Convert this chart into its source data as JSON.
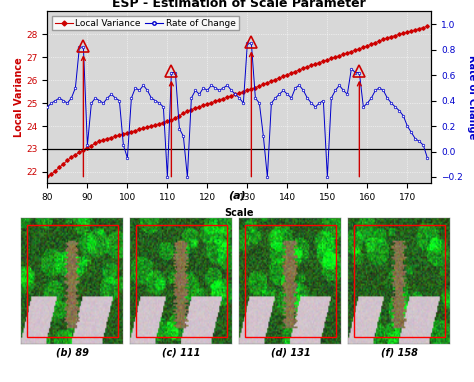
{
  "title": "ESP - Estimation of Scale Parameter",
  "xlabel": "Scale",
  "ylabel_left": "Local Variance",
  "ylabel_right": "Rate of Change",
  "xlim": [
    80,
    176
  ],
  "ylim_left": [
    21.5,
    29
  ],
  "ylim_right": [
    -0.25,
    1.1
  ],
  "hline_y": 23.0,
  "scale_x": [
    80,
    81,
    82,
    83,
    84,
    85,
    86,
    87,
    88,
    89,
    90,
    91,
    92,
    93,
    94,
    95,
    96,
    97,
    98,
    99,
    100,
    101,
    102,
    103,
    104,
    105,
    106,
    107,
    108,
    109,
    110,
    111,
    112,
    113,
    114,
    115,
    116,
    117,
    118,
    119,
    120,
    121,
    122,
    123,
    124,
    125,
    126,
    127,
    128,
    129,
    130,
    131,
    132,
    133,
    134,
    135,
    136,
    137,
    138,
    139,
    140,
    141,
    142,
    143,
    144,
    145,
    146,
    147,
    148,
    149,
    150,
    151,
    152,
    153,
    154,
    155,
    156,
    157,
    158,
    159,
    160,
    161,
    162,
    163,
    164,
    165,
    166,
    167,
    168,
    169,
    170,
    171,
    172,
    173,
    174,
    175
  ],
  "local_variance": [
    21.8,
    21.9,
    22.05,
    22.2,
    22.35,
    22.5,
    22.65,
    22.75,
    22.85,
    22.95,
    23.05,
    23.15,
    23.25,
    23.35,
    23.4,
    23.45,
    23.5,
    23.55,
    23.6,
    23.65,
    23.7,
    23.75,
    23.8,
    23.85,
    23.9,
    23.95,
    24.0,
    24.05,
    24.1,
    24.15,
    24.2,
    24.25,
    24.35,
    24.45,
    24.55,
    24.65,
    24.72,
    24.78,
    24.84,
    24.9,
    24.96,
    25.02,
    25.08,
    25.14,
    25.2,
    25.26,
    25.32,
    25.38,
    25.44,
    25.5,
    25.56,
    25.62,
    25.68,
    25.75,
    25.82,
    25.89,
    25.96,
    26.03,
    26.1,
    26.17,
    26.24,
    26.31,
    26.38,
    26.45,
    26.52,
    26.59,
    26.65,
    26.71,
    26.77,
    26.83,
    26.89,
    26.95,
    27.01,
    27.07,
    27.13,
    27.19,
    27.25,
    27.31,
    27.37,
    27.43,
    27.5,
    27.57,
    27.64,
    27.71,
    27.78,
    27.85,
    27.9,
    27.95,
    28.0,
    28.05,
    28.1,
    28.15,
    28.2,
    28.25,
    28.3,
    28.35
  ],
  "roc_y": [
    0.35,
    0.38,
    0.4,
    0.42,
    0.4,
    0.38,
    0.42,
    0.5,
    0.82,
    0.82,
    0.05,
    0.38,
    0.42,
    0.4,
    0.38,
    0.42,
    0.45,
    0.42,
    0.4,
    0.05,
    -0.05,
    0.42,
    0.5,
    0.48,
    0.52,
    0.48,
    0.42,
    0.4,
    0.38,
    0.35,
    -0.2,
    0.62,
    0.62,
    0.18,
    0.12,
    -0.2,
    0.42,
    0.48,
    0.45,
    0.5,
    0.48,
    0.52,
    0.5,
    0.48,
    0.5,
    0.52,
    0.48,
    0.45,
    0.42,
    0.38,
    0.85,
    0.85,
    0.42,
    0.38,
    0.12,
    -0.2,
    0.38,
    0.42,
    0.45,
    0.48,
    0.45,
    0.42,
    0.5,
    0.52,
    0.48,
    0.42,
    0.38,
    0.35,
    0.38,
    0.4,
    -0.2,
    0.42,
    0.48,
    0.52,
    0.48,
    0.45,
    0.65,
    0.62,
    0.62,
    0.35,
    0.38,
    0.42,
    0.48,
    0.5,
    0.48,
    0.42,
    0.38,
    0.35,
    0.32,
    0.28,
    0.2,
    0.15,
    0.1,
    0.08,
    0.05,
    -0.05
  ],
  "peak_scales": [
    89,
    111,
    131,
    158
  ],
  "color_lv": "#cc0000",
  "color_roc": "#0000cc",
  "color_arrow": "#cc0000",
  "bg_color": "#d8d8d8",
  "grid_color": "#ffffff",
  "title_fontsize": 9,
  "axis_fontsize": 7,
  "tick_fontsize": 6.5,
  "legend_fontsize": 6.5,
  "bottom_labels": [
    "(b) 89",
    "(c) 111",
    "(d) 131",
    "(f) 158"
  ],
  "subplot_label": "(a)"
}
